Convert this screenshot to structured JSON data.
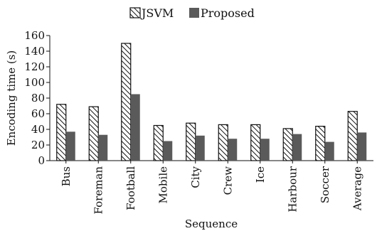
{
  "chart_data": {
    "type": "bar",
    "xlabel": "Sequence",
    "ylabel": "Encoding time (s)",
    "ylim": [
      0,
      160
    ],
    "yticks": [
      0,
      20,
      40,
      60,
      80,
      100,
      120,
      140,
      160
    ],
    "grid": false,
    "legend_position": "top-center",
    "categories": [
      "Bus",
      "Foreman",
      "Football",
      "Mobile",
      "City",
      "Crew",
      "Ice",
      "Harbour",
      "Soccer",
      "Average"
    ],
    "series": [
      {
        "name": "JSVM",
        "pattern": "diagonal-hatch",
        "color": "#ffffff",
        "stroke": "#111111",
        "values": [
          72,
          69,
          150,
          45,
          48,
          46,
          46,
          41,
          44,
          63
        ]
      },
      {
        "name": "Proposed",
        "pattern": "solid",
        "color": "#5a5a5a",
        "values": [
          37,
          33,
          85,
          25,
          32,
          28,
          28,
          34,
          24,
          36
        ]
      }
    ]
  }
}
